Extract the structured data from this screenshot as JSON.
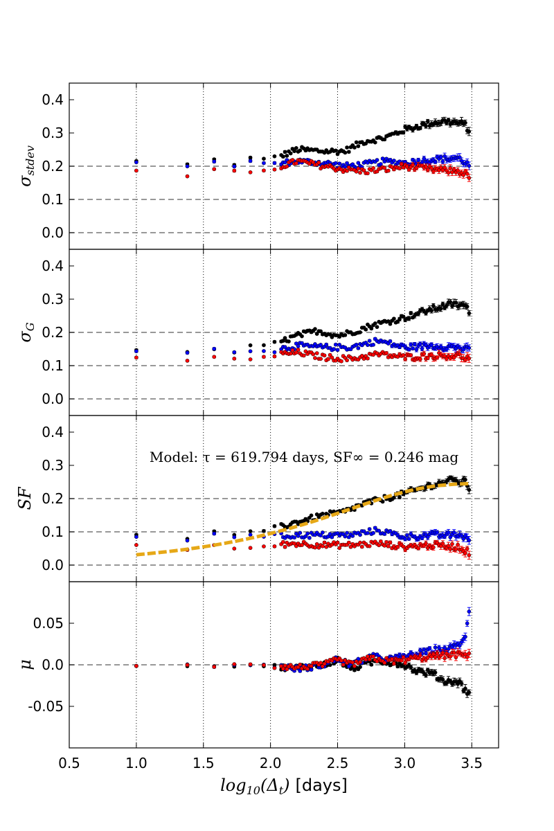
{
  "chart_data": {
    "type": "scatter",
    "xlabel": {
      "math": "log",
      "sub": "10",
      "paren_open": "(Δ",
      "t": "t",
      "paren_close": ")",
      "unit": "[days]"
    },
    "xlim": [
      0.5,
      3.7
    ],
    "x_ticks": [
      0.5,
      1.0,
      1.5,
      2.0,
      2.5,
      3.0,
      3.5
    ],
    "x_tick_labels": [
      "0.5",
      "1.0",
      "1.5",
      "2.0",
      "2.5",
      "3.0",
      "3.5"
    ],
    "series_colors": {
      "black": "#000000",
      "blue": "#0000ff",
      "red": "#ff0000",
      "model": "#e6a817"
    },
    "panels": [
      {
        "id": "sigma_stdev",
        "ylabel": {
          "main": "σ",
          "sub": "stdev"
        },
        "ylim": [
          -0.05,
          0.45
        ],
        "y_ticks": [
          0.0,
          0.1,
          0.2,
          0.3,
          0.4
        ],
        "y_tick_labels": [
          "0.0",
          "0.1",
          "0.2",
          "0.3",
          "0.4"
        ],
        "hlines": [
          0.0,
          0.1,
          0.2
        ],
        "series": [
          {
            "color": "black",
            "anchors": [
              [
                1.0,
                0.215
              ],
              [
                1.38,
                0.205
              ],
              [
                1.58,
                0.22
              ],
              [
                1.73,
                0.205
              ],
              [
                1.85,
                0.225
              ],
              [
                2.0,
                0.22
              ],
              [
                2.2,
                0.25
              ],
              [
                2.4,
                0.245
              ],
              [
                2.55,
                0.245
              ],
              [
                2.7,
                0.275
              ],
              [
                2.85,
                0.285
              ],
              [
                3.0,
                0.31
              ],
              [
                3.1,
                0.32
              ],
              [
                3.2,
                0.33
              ],
              [
                3.3,
                0.335
              ],
              [
                3.4,
                0.33
              ],
              [
                3.45,
                0.325
              ],
              [
                3.49,
                0.3
              ]
            ]
          },
          {
            "color": "blue",
            "anchors": [
              [
                1.0,
                0.21
              ],
              [
                1.38,
                0.2
              ],
              [
                1.58,
                0.215
              ],
              [
                1.73,
                0.2
              ],
              [
                1.85,
                0.215
              ],
              [
                2.0,
                0.205
              ],
              [
                2.2,
                0.215
              ],
              [
                2.4,
                0.21
              ],
              [
                2.55,
                0.2
              ],
              [
                2.7,
                0.205
              ],
              [
                2.85,
                0.215
              ],
              [
                3.0,
                0.21
              ],
              [
                3.2,
                0.22
              ],
              [
                3.4,
                0.225
              ],
              [
                3.49,
                0.2
              ]
            ]
          },
          {
            "color": "red",
            "anchors": [
              [
                1.0,
                0.185
              ],
              [
                1.38,
                0.17
              ],
              [
                1.58,
                0.19
              ],
              [
                1.73,
                0.185
              ],
              [
                1.85,
                0.18
              ],
              [
                2.0,
                0.19
              ],
              [
                2.2,
                0.215
              ],
              [
                2.4,
                0.2
              ],
              [
                2.55,
                0.19
              ],
              [
                2.7,
                0.185
              ],
              [
                2.85,
                0.19
              ],
              [
                3.0,
                0.2
              ],
              [
                3.2,
                0.19
              ],
              [
                3.4,
                0.185
              ],
              [
                3.49,
                0.17
              ]
            ]
          }
        ]
      },
      {
        "id": "sigma_G",
        "ylabel": {
          "main": "σ",
          "sub": "G"
        },
        "ylim": [
          -0.05,
          0.45
        ],
        "y_ticks": [
          0.0,
          0.1,
          0.2,
          0.3,
          0.4
        ],
        "y_tick_labels": [
          "0.0",
          "0.1",
          "0.2",
          "0.3",
          "0.4"
        ],
        "hlines": [
          0.0,
          0.1,
          0.2
        ],
        "series": [
          {
            "color": "black",
            "anchors": [
              [
                1.0,
                0.145
              ],
              [
                1.38,
                0.14
              ],
              [
                1.58,
                0.15
              ],
              [
                1.73,
                0.14
              ],
              [
                1.85,
                0.16
              ],
              [
                2.0,
                0.16
              ],
              [
                2.2,
                0.19
              ],
              [
                2.35,
                0.205
              ],
              [
                2.5,
                0.19
              ],
              [
                2.6,
                0.2
              ],
              [
                2.75,
                0.22
              ],
              [
                3.0,
                0.245
              ],
              [
                3.2,
                0.27
              ],
              [
                3.35,
                0.285
              ],
              [
                3.45,
                0.28
              ],
              [
                3.49,
                0.255
              ]
            ]
          },
          {
            "color": "blue",
            "anchors": [
              [
                1.0,
                0.145
              ],
              [
                1.38,
                0.14
              ],
              [
                1.58,
                0.15
              ],
              [
                1.73,
                0.14
              ],
              [
                1.85,
                0.145
              ],
              [
                2.0,
                0.145
              ],
              [
                2.2,
                0.16
              ],
              [
                2.4,
                0.155
              ],
              [
                2.6,
                0.155
              ],
              [
                2.8,
                0.175
              ],
              [
                3.0,
                0.155
              ],
              [
                3.2,
                0.16
              ],
              [
                3.4,
                0.155
              ],
              [
                3.49,
                0.145
              ]
            ]
          },
          {
            "color": "red",
            "anchors": [
              [
                1.0,
                0.125
              ],
              [
                1.38,
                0.115
              ],
              [
                1.58,
                0.125
              ],
              [
                1.73,
                0.12
              ],
              [
                1.85,
                0.12
              ],
              [
                2.0,
                0.13
              ],
              [
                2.2,
                0.14
              ],
              [
                2.4,
                0.125
              ],
              [
                2.6,
                0.12
              ],
              [
                2.8,
                0.135
              ],
              [
                3.0,
                0.125
              ],
              [
                3.2,
                0.13
              ],
              [
                3.4,
                0.13
              ],
              [
                3.49,
                0.12
              ]
            ]
          }
        ]
      },
      {
        "id": "SF",
        "ylabel": {
          "main": "SF",
          "sub": ""
        },
        "ylim": [
          -0.05,
          0.45
        ],
        "y_ticks": [
          0.0,
          0.1,
          0.2,
          0.3,
          0.4
        ],
        "y_tick_labels": [
          "0.0",
          "0.1",
          "0.2",
          "0.3",
          "0.4"
        ],
        "hlines": [
          0.0,
          0.1,
          0.2
        ],
        "annotation": {
          "text": "Model: τ = 619.794 days,  SF∞ = 0.246 mag",
          "x": 2.25,
          "y": 0.31
        },
        "model": {
          "tau": 619.794,
          "sf_inf": 0.246,
          "x_range": [
            1.0,
            3.49
          ]
        },
        "series": [
          {
            "color": "black",
            "anchors": [
              [
                1.0,
                0.09
              ],
              [
                1.38,
                0.08
              ],
              [
                1.58,
                0.1
              ],
              [
                1.73,
                0.09
              ],
              [
                1.85,
                0.1
              ],
              [
                2.0,
                0.105
              ],
              [
                2.2,
                0.13
              ],
              [
                2.4,
                0.15
              ],
              [
                2.55,
                0.16
              ],
              [
                2.7,
                0.185
              ],
              [
                2.85,
                0.2
              ],
              [
                3.0,
                0.215
              ],
              [
                3.2,
                0.24
              ],
              [
                3.35,
                0.255
              ],
              [
                3.45,
                0.25
              ],
              [
                3.49,
                0.225
              ]
            ]
          },
          {
            "color": "blue",
            "anchors": [
              [
                1.0,
                0.085
              ],
              [
                1.38,
                0.075
              ],
              [
                1.58,
                0.095
              ],
              [
                1.73,
                0.085
              ],
              [
                1.85,
                0.09
              ],
              [
                2.0,
                0.085
              ],
              [
                2.2,
                0.09
              ],
              [
                2.4,
                0.09
              ],
              [
                2.6,
                0.09
              ],
              [
                2.8,
                0.105
              ],
              [
                3.0,
                0.085
              ],
              [
                3.2,
                0.09
              ],
              [
                3.4,
                0.09
              ],
              [
                3.49,
                0.08
              ]
            ]
          },
          {
            "color": "red",
            "anchors": [
              [
                1.0,
                0.06
              ],
              [
                1.38,
                0.045
              ],
              [
                1.58,
                0.06
              ],
              [
                1.73,
                0.05
              ],
              [
                1.85,
                0.05
              ],
              [
                2.0,
                0.06
              ],
              [
                2.2,
                0.065
              ],
              [
                2.4,
                0.06
              ],
              [
                2.6,
                0.06
              ],
              [
                2.8,
                0.065
              ],
              [
                3.0,
                0.055
              ],
              [
                3.2,
                0.06
              ],
              [
                3.4,
                0.055
              ],
              [
                3.49,
                0.035
              ]
            ]
          }
        ]
      },
      {
        "id": "mu",
        "ylabel": {
          "main": "μ",
          "sub": ""
        },
        "ylim": [
          -0.1,
          0.1
        ],
        "y_ticks": [
          -0.05,
          0.0,
          0.05
        ],
        "y_tick_labels": [
          "-0.05",
          "0.0",
          "0.05"
        ],
        "hlines": [
          0.0
        ],
        "series": [
          {
            "color": "black",
            "anchors": [
              [
                1.0,
                -0.001
              ],
              [
                1.38,
                -0.001
              ],
              [
                1.58,
                -0.002
              ],
              [
                1.73,
                -0.002
              ],
              [
                1.85,
                0.0
              ],
              [
                2.0,
                -0.003
              ],
              [
                2.2,
                -0.003
              ],
              [
                2.4,
                0.0
              ],
              [
                2.5,
                0.006
              ],
              [
                2.6,
                -0.005
              ],
              [
                2.7,
                0.0
              ],
              [
                2.8,
                0.005
              ],
              [
                3.0,
                0.0
              ],
              [
                3.1,
                -0.008
              ],
              [
                3.2,
                -0.01
              ],
              [
                3.3,
                -0.02
              ],
              [
                3.4,
                -0.02
              ],
              [
                3.45,
                -0.03
              ],
              [
                3.49,
                -0.035
              ]
            ]
          },
          {
            "color": "blue",
            "anchors": [
              [
                1.0,
                -0.001
              ],
              [
                1.38,
                0.0
              ],
              [
                1.58,
                -0.003
              ],
              [
                1.73,
                0.0
              ],
              [
                1.85,
                0.0
              ],
              [
                2.0,
                0.0
              ],
              [
                2.2,
                -0.005
              ],
              [
                2.4,
                0.0
              ],
              [
                2.5,
                0.007
              ],
              [
                2.6,
                0.0
              ],
              [
                2.75,
                0.01
              ],
              [
                2.9,
                0.007
              ],
              [
                3.0,
                0.01
              ],
              [
                3.2,
                0.017
              ],
              [
                3.35,
                0.02
              ],
              [
                3.45,
                0.03
              ],
              [
                3.49,
                0.075
              ]
            ]
          },
          {
            "color": "red",
            "anchors": [
              [
                1.0,
                -0.001
              ],
              [
                1.38,
                0.0
              ],
              [
                1.58,
                -0.002
              ],
              [
                1.73,
                0.001
              ],
              [
                1.85,
                0.001
              ],
              [
                2.0,
                -0.001
              ],
              [
                2.2,
                -0.003
              ],
              [
                2.4,
                0.0
              ],
              [
                2.5,
                0.006
              ],
              [
                2.6,
                0.0
              ],
              [
                2.75,
                0.008
              ],
              [
                2.9,
                0.004
              ],
              [
                3.0,
                0.006
              ],
              [
                3.2,
                0.01
              ],
              [
                3.35,
                0.012
              ],
              [
                3.45,
                0.012
              ],
              [
                3.49,
                0.01
              ]
            ]
          }
        ]
      }
    ]
  }
}
